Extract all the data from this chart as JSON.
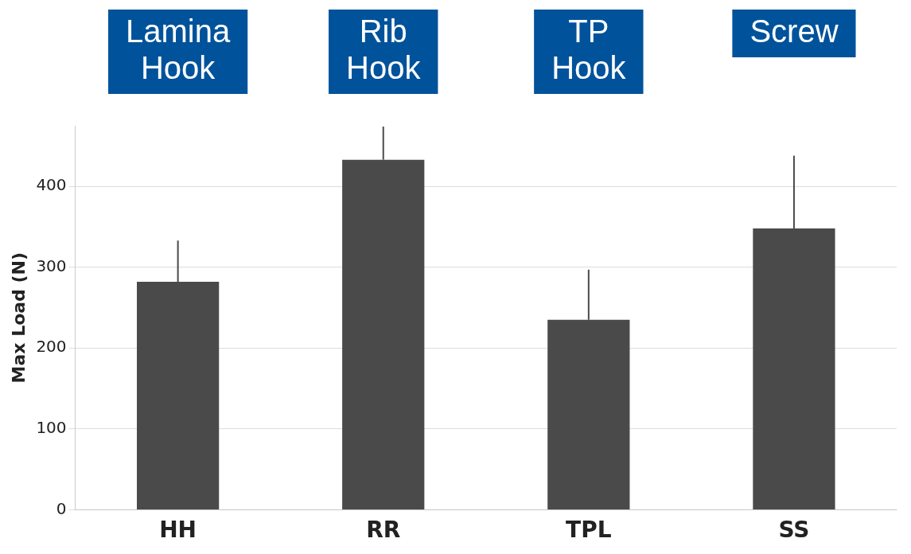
{
  "chart_data": {
    "type": "bar",
    "ylabel": "Max Load (N)",
    "categories": [
      "HH",
      "RR",
      "TPL",
      "SS"
    ],
    "values": [
      282,
      433,
      235,
      348
    ],
    "errors": [
      [
        282,
        333
      ],
      [
        433,
        474
      ],
      [
        235,
        297
      ],
      [
        348,
        438
      ]
    ],
    "color": "#4a4a4a",
    "ylim": [
      0,
      475
    ],
    "yticks": [
      0,
      100,
      200,
      300,
      400
    ],
    "grid": "y",
    "annotations": [
      "Lamina Hook",
      "Rib Hook",
      "TP Hook",
      "Screw"
    ]
  }
}
